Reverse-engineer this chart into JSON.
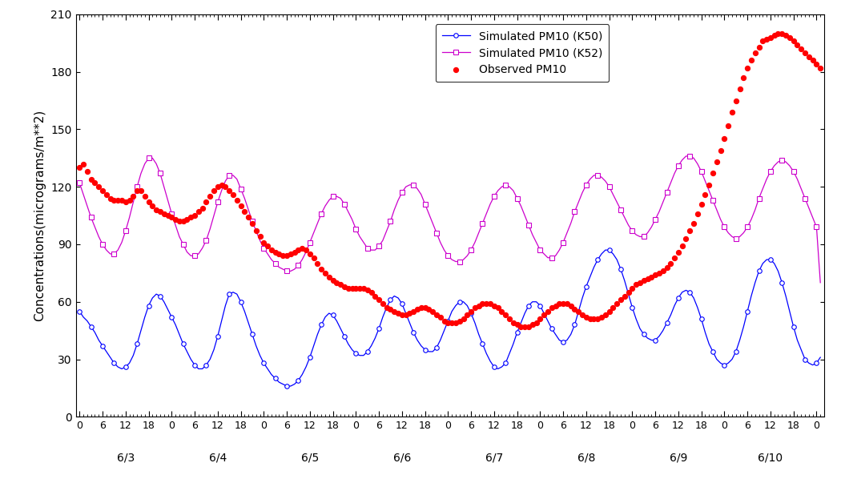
{
  "ylabel": "Concentrations(micrograms/m**2)",
  "ylim": [
    0,
    210
  ],
  "yticks": [
    0,
    30,
    60,
    90,
    120,
    150,
    180,
    210
  ],
  "background_color": "#ffffff",
  "legend_labels": [
    "Observed PM10",
    "Simulated PM10 (K50)",
    "Simulated PM10 (K52)"
  ],
  "date_labels": [
    "6/3",
    "6/4",
    "6/5",
    "6/6",
    "6/7",
    "6/8",
    "6/9",
    "6/10"
  ],
  "xlim": [
    -0.5,
    194.5
  ],
  "x_start_hour": 0,
  "k50_y": [
    55,
    52,
    50,
    47,
    44,
    40,
    37,
    34,
    31,
    28,
    26,
    25,
    26,
    28,
    32,
    38,
    45,
    52,
    58,
    62,
    64,
    63,
    60,
    56,
    52,
    48,
    43,
    38,
    34,
    30,
    27,
    25,
    25,
    27,
    30,
    35,
    42,
    50,
    58,
    64,
    65,
    64,
    60,
    55,
    49,
    43,
    37,
    32,
    28,
    25,
    22,
    20,
    18,
    17,
    16,
    16,
    17,
    19,
    22,
    26,
    31,
    37,
    43,
    48,
    52,
    54,
    53,
    50,
    46,
    42,
    38,
    35,
    33,
    32,
    32,
    34,
    37,
    41,
    46,
    52,
    57,
    61,
    63,
    62,
    59,
    54,
    49,
    44,
    40,
    37,
    35,
    34,
    34,
    36,
    40,
    45,
    50,
    55,
    58,
    60,
    60,
    58,
    54,
    49,
    43,
    38,
    33,
    29,
    26,
    25,
    26,
    28,
    33,
    38,
    44,
    49,
    54,
    58,
    60,
    60,
    58,
    54,
    50,
    46,
    43,
    40,
    39,
    40,
    43,
    48,
    55,
    62,
    68,
    73,
    78,
    82,
    85,
    87,
    87,
    85,
    82,
    77,
    71,
    64,
    57,
    51,
    46,
    43,
    41,
    40,
    40,
    42,
    45,
    49,
    53,
    58,
    62,
    65,
    66,
    65,
    62,
    57,
    51,
    44,
    38,
    34,
    30,
    28,
    27,
    28,
    30,
    34,
    40,
    47,
    55,
    63,
    70,
    76,
    80,
    82,
    82,
    80,
    76,
    70,
    63,
    55,
    47,
    40,
    35,
    30,
    28,
    27,
    28,
    31
  ],
  "k52_y": [
    122,
    116,
    110,
    104,
    99,
    94,
    90,
    87,
    85,
    85,
    87,
    91,
    97,
    104,
    112,
    120,
    127,
    132,
    135,
    135,
    132,
    127,
    120,
    113,
    106,
    100,
    94,
    90,
    86,
    84,
    84,
    85,
    88,
    92,
    98,
    105,
    112,
    118,
    123,
    126,
    126,
    124,
    119,
    114,
    108,
    102,
    97,
    92,
    88,
    85,
    82,
    80,
    78,
    77,
    76,
    76,
    77,
    79,
    82,
    86,
    91,
    96,
    101,
    106,
    110,
    113,
    115,
    115,
    114,
    111,
    107,
    103,
    98,
    94,
    91,
    88,
    87,
    87,
    89,
    92,
    97,
    102,
    108,
    113,
    117,
    120,
    121,
    121,
    119,
    116,
    111,
    106,
    101,
    96,
    91,
    87,
    84,
    82,
    81,
    81,
    82,
    84,
    87,
    91,
    96,
    101,
    106,
    111,
    115,
    118,
    120,
    121,
    120,
    118,
    114,
    110,
    105,
    100,
    95,
    91,
    87,
    85,
    83,
    83,
    84,
    87,
    91,
    96,
    101,
    107,
    112,
    117,
    121,
    124,
    126,
    126,
    125,
    123,
    120,
    116,
    112,
    108,
    104,
    100,
    97,
    95,
    94,
    94,
    96,
    99,
    103,
    107,
    112,
    117,
    122,
    127,
    131,
    134,
    136,
    136,
    135,
    132,
    128,
    123,
    118,
    113,
    108,
    103,
    99,
    96,
    94,
    93,
    94,
    96,
    99,
    103,
    108,
    114,
    119,
    124,
    128,
    131,
    133,
    134,
    133,
    131,
    128,
    124,
    119,
    114,
    109,
    104,
    99,
    70
  ],
  "obs_y": [
    130,
    132,
    128,
    124,
    122,
    120,
    118,
    116,
    114,
    113,
    113,
    113,
    112,
    113,
    115,
    118,
    118,
    115,
    112,
    110,
    108,
    107,
    106,
    105,
    104,
    103,
    102,
    102,
    103,
    104,
    105,
    107,
    109,
    112,
    115,
    118,
    120,
    121,
    120,
    118,
    116,
    113,
    110,
    107,
    104,
    101,
    97,
    94,
    91,
    89,
    87,
    86,
    85,
    84,
    84,
    85,
    86,
    87,
    88,
    87,
    85,
    83,
    80,
    77,
    75,
    73,
    71,
    70,
    69,
    68,
    67,
    67,
    67,
    67,
    67,
    66,
    65,
    63,
    61,
    59,
    57,
    56,
    55,
    54,
    53,
    53,
    54,
    55,
    56,
    57,
    57,
    56,
    55,
    53,
    52,
    50,
    49,
    49,
    49,
    50,
    51,
    53,
    55,
    57,
    58,
    59,
    59,
    59,
    58,
    57,
    55,
    53,
    51,
    49,
    48,
    47,
    47,
    47,
    48,
    49,
    51,
    53,
    55,
    57,
    58,
    59,
    59,
    59,
    58,
    56,
    55,
    53,
    52,
    51,
    51,
    51,
    52,
    53,
    55,
    57,
    59,
    61,
    63,
    65,
    67,
    69,
    70,
    71,
    72,
    73,
    74,
    75,
    76,
    78,
    80,
    83,
    86,
    89,
    93,
    97,
    101,
    106,
    111,
    116,
    121,
    127,
    133,
    139,
    145,
    152,
    159,
    165,
    171,
    177,
    182,
    186,
    190,
    193,
    196,
    197,
    198,
    199,
    200,
    200,
    199,
    198,
    196,
    194,
    192,
    190,
    188,
    186,
    184,
    182
  ]
}
